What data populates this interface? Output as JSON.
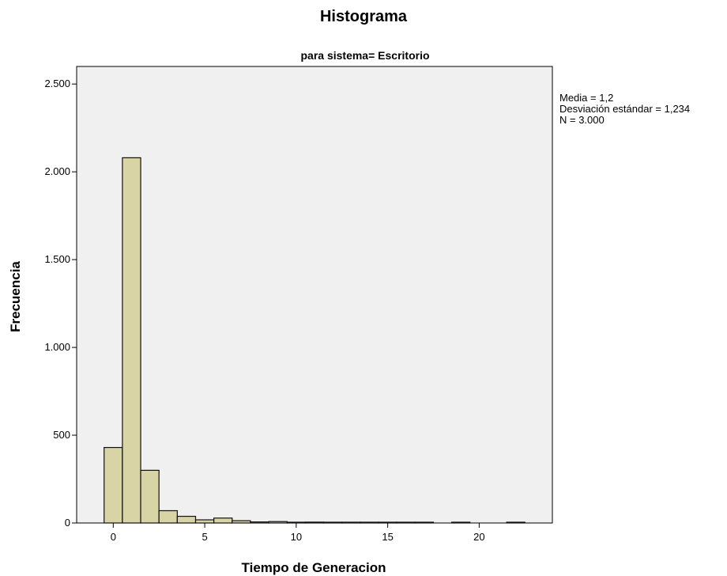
{
  "chart_data": {
    "type": "bar",
    "title": "Histograma",
    "subtitle": "para sistema= Escritorio",
    "xlabel": "Tiempo de Generacion",
    "ylabel": "Frecuencia",
    "xlim": [
      -2,
      24
    ],
    "ylim": [
      0,
      2600
    ],
    "x_ticks": [
      0,
      5,
      10,
      15,
      20
    ],
    "x_tick_labels": [
      "0",
      "5",
      "10",
      "15",
      "20"
    ],
    "y_ticks": [
      0,
      500,
      1000,
      1500,
      2000,
      2500
    ],
    "y_tick_labels": [
      "0",
      "500",
      "1.000",
      "1.500",
      "2.000",
      "2.500"
    ],
    "bin_width": 1,
    "bins": [
      {
        "start": -0.5,
        "end": 0.5,
        "count": 430
      },
      {
        "start": 0.5,
        "end": 1.5,
        "count": 2080
      },
      {
        "start": 1.5,
        "end": 2.5,
        "count": 300
      },
      {
        "start": 2.5,
        "end": 3.5,
        "count": 70
      },
      {
        "start": 3.5,
        "end": 4.5,
        "count": 38
      },
      {
        "start": 4.5,
        "end": 5.5,
        "count": 18
      },
      {
        "start": 5.5,
        "end": 6.5,
        "count": 28
      },
      {
        "start": 6.5,
        "end": 7.5,
        "count": 13
      },
      {
        "start": 7.5,
        "end": 8.5,
        "count": 6
      },
      {
        "start": 8.5,
        "end": 9.5,
        "count": 8
      },
      {
        "start": 9.5,
        "end": 10.5,
        "count": 3
      },
      {
        "start": 10.5,
        "end": 11.5,
        "count": 5
      },
      {
        "start": 11.5,
        "end": 12.5,
        "count": 2
      },
      {
        "start": 12.5,
        "end": 13.5,
        "count": 1
      },
      {
        "start": 13.5,
        "end": 14.5,
        "count": 2
      },
      {
        "start": 14.5,
        "end": 15.5,
        "count": 1
      },
      {
        "start": 15.5,
        "end": 16.5,
        "count": 1
      },
      {
        "start": 16.5,
        "end": 17.5,
        "count": 1
      },
      {
        "start": 17.5,
        "end": 18.5,
        "count": 0
      },
      {
        "start": 18.5,
        "end": 19.5,
        "count": 1
      },
      {
        "start": 19.5,
        "end": 20.5,
        "count": 0
      },
      {
        "start": 20.5,
        "end": 21.5,
        "count": 0
      },
      {
        "start": 21.5,
        "end": 22.5,
        "count": 1
      }
    ],
    "stats": {
      "mean": "Media = 1,2",
      "std": "Desviación estándar = 1,234",
      "n": "N = 3.000"
    },
    "legend_position": "right",
    "grid": false,
    "colors": {
      "bar_fill": "#d9d4a6",
      "bar_stroke": "#111111",
      "plot_bg": "#f0f0f0"
    }
  }
}
